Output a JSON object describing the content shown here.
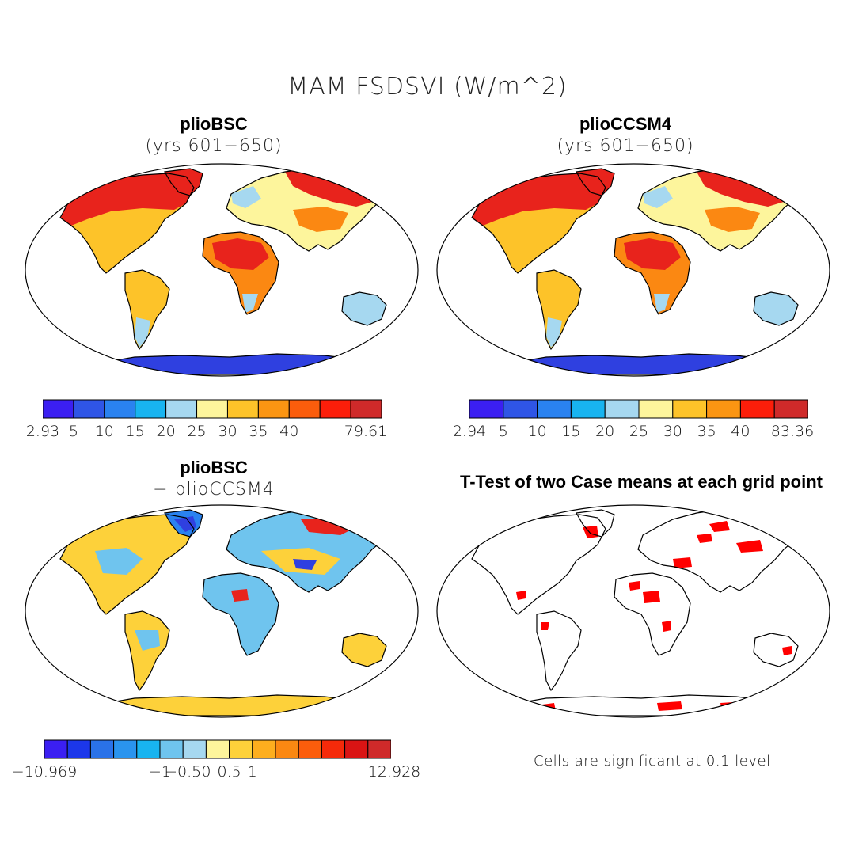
{
  "title": "MAM FSDSVI (W/m^2)",
  "panels": [
    {
      "name": "plioBSC",
      "subtitle": "(yrs 601−650)"
    },
    {
      "name": "plioCCSM4",
      "subtitle": "(yrs 601−650)"
    },
    {
      "name": "plioBSC",
      "subtitle": "− plioCCSM4"
    },
    {
      "name": "T-Test of two Case means at each grid point",
      "subtitle": ""
    }
  ],
  "colorbars": [
    {
      "colors": [
        "#3b1ff2",
        "#2f55e6",
        "#2a82f0",
        "#18b4f0",
        "#a6d8f0",
        "#fdf59c",
        "#fdc329",
        "#fb9512",
        "#fb5d0c",
        "#fc1e0a",
        "#cf2a2a"
      ],
      "labels": [
        "2.93",
        "5",
        "10",
        "15",
        "20",
        "25",
        "30",
        "35",
        "40",
        "79.61"
      ]
    },
    {
      "colors": [
        "#3b1ff2",
        "#2f55e6",
        "#2a82f0",
        "#18b4f0",
        "#a6d8f0",
        "#fdf59c",
        "#fdc329",
        "#fb9512",
        "#fc1e0a",
        "#cf2a2a"
      ],
      "labels": [
        "2.94",
        "5",
        "10",
        "15",
        "20",
        "25",
        "30",
        "35",
        "40",
        "83.36"
      ]
    },
    {
      "colors": [
        "#3b1ff2",
        "#1c37ea",
        "#2a72e8",
        "#2a94ee",
        "#18b4f0",
        "#6fc4ee",
        "#a6d8f0",
        "#fdf59c",
        "#fdd13a",
        "#fdae1e",
        "#fb8812",
        "#fb5d0c",
        "#f52a0a",
        "#da1414",
        "#cf2a2a"
      ],
      "labels": [
        "−10.969",
        "−1",
        "−0.5",
        "0",
        "0.5",
        "1",
        "12.928"
      ]
    }
  ],
  "note": "Cells are significant at 0.1 level",
  "map_colors": {
    "mean_warm_high": "#e8231c",
    "mean_warm": "#fb8812",
    "mean_mid": "#fdc329",
    "mean_light": "#fdf59c",
    "mean_cool": "#a6d8f0",
    "mean_cold": "#2a82f0",
    "antarctic": "#2f40e0",
    "diff_neg": "#6fc4ee",
    "diff_pos": "#fdd13a",
    "significant": "#ff0000"
  }
}
